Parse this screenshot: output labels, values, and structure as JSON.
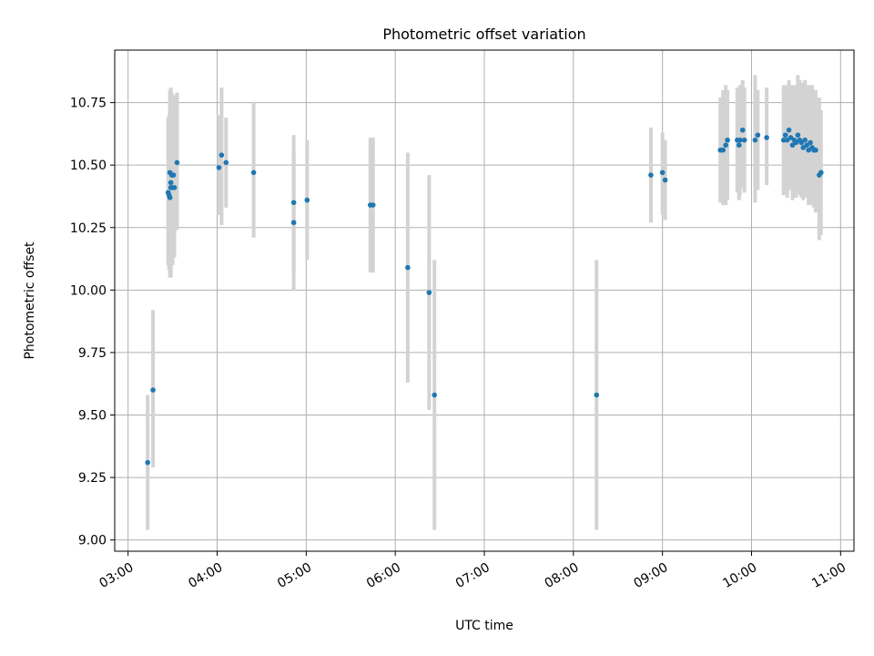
{
  "chart_data": {
    "type": "scatter",
    "title": "Photometric offset variation",
    "xlabel": "UTC time",
    "ylabel": "Photometric offset",
    "x_axis": {
      "unit": "hours UTC",
      "range": [
        2.85,
        11.15
      ],
      "ticks": [
        3,
        4,
        5,
        6,
        7,
        8,
        9,
        10,
        11
      ],
      "tick_labels": [
        "03:00",
        "04:00",
        "05:00",
        "06:00",
        "07:00",
        "08:00",
        "09:00",
        "10:00",
        "11:00"
      ]
    },
    "y_axis": {
      "range": [
        8.955,
        10.96
      ],
      "ticks": [
        9.0,
        9.25,
        9.5,
        9.75,
        10.0,
        10.25,
        10.5,
        10.75
      ],
      "tick_labels": [
        "9.00",
        "9.25",
        "9.50",
        "9.75",
        "10.00",
        "10.25",
        "10.50",
        "10.75"
      ]
    },
    "grid": true,
    "legend": "none",
    "colors": {
      "points": "#1f77b4",
      "error_bars": "#d3d3d3",
      "grid": "#b0b0b0"
    },
    "series": [
      {
        "x": [
          3.22,
          3.28,
          3.45,
          3.46,
          3.47,
          3.47,
          3.48,
          3.48,
          3.49,
          3.5,
          3.51,
          3.52,
          3.55,
          4.02,
          4.05,
          4.1,
          4.41,
          4.86,
          4.86,
          5.01,
          5.72,
          5.75,
          6.14,
          6.38,
          6.44,
          8.26,
          8.87,
          9.0,
          9.03,
          9.65,
          9.68,
          9.71,
          9.73,
          9.84,
          9.86,
          9.87,
          9.9,
          9.92,
          10.04,
          10.07,
          10.17,
          10.36,
          10.38,
          10.4,
          10.42,
          10.44,
          10.46,
          10.48,
          10.5,
          10.52,
          10.54,
          10.56,
          10.58,
          10.6,
          10.62,
          10.64,
          10.66,
          10.68,
          10.7,
          10.72,
          10.76,
          10.78
        ],
        "y": [
          9.31,
          9.6,
          10.39,
          10.38,
          10.37,
          10.47,
          10.43,
          10.41,
          10.46,
          10.41,
          10.46,
          10.41,
          10.51,
          10.49,
          10.54,
          10.51,
          10.47,
          10.27,
          10.35,
          10.36,
          10.34,
          10.34,
          10.09,
          9.99,
          9.58,
          9.58,
          10.46,
          10.47,
          10.44,
          10.56,
          10.56,
          10.58,
          10.6,
          10.6,
          10.58,
          10.6,
          10.64,
          10.6,
          10.6,
          10.62,
          10.61,
          10.6,
          10.62,
          10.6,
          10.64,
          10.61,
          10.58,
          10.6,
          10.59,
          10.62,
          10.6,
          10.59,
          10.57,
          10.6,
          10.58,
          10.56,
          10.59,
          10.57,
          10.56,
          10.56,
          10.46,
          10.47
        ],
        "err_low": [
          9.04,
          9.29,
          10.1,
          10.08,
          10.05,
          10.12,
          10.06,
          10.05,
          10.14,
          10.1,
          10.15,
          10.13,
          10.24,
          10.3,
          10.26,
          10.33,
          10.21,
          10.0,
          10.08,
          10.12,
          10.07,
          10.07,
          9.63,
          9.52,
          9.04,
          9.04,
          10.27,
          10.3,
          10.28,
          10.35,
          10.34,
          10.34,
          10.36,
          10.39,
          10.36,
          10.38,
          10.41,
          10.39,
          10.35,
          10.4,
          10.42,
          10.38,
          10.4,
          10.37,
          10.42,
          10.4,
          10.36,
          10.38,
          10.37,
          10.4,
          10.38,
          10.37,
          10.36,
          10.39,
          10.37,
          10.34,
          10.36,
          10.34,
          10.33,
          10.31,
          10.2,
          10.22
        ],
        "err_high": [
          9.58,
          9.92,
          10.69,
          10.7,
          10.72,
          10.8,
          10.81,
          10.78,
          10.79,
          10.74,
          10.78,
          10.7,
          10.79,
          10.7,
          10.81,
          10.69,
          10.75,
          10.55,
          10.62,
          10.6,
          10.61,
          10.61,
          10.55,
          10.46,
          10.12,
          10.12,
          10.65,
          10.63,
          10.6,
          10.77,
          10.8,
          10.82,
          10.8,
          10.81,
          10.8,
          10.82,
          10.84,
          10.81,
          10.86,
          10.8,
          10.81,
          10.82,
          10.82,
          10.8,
          10.84,
          10.82,
          10.8,
          10.82,
          10.8,
          10.86,
          10.84,
          10.82,
          10.83,
          10.84,
          10.82,
          10.8,
          10.82,
          10.82,
          10.8,
          10.8,
          10.77,
          10.72
        ]
      }
    ]
  }
}
